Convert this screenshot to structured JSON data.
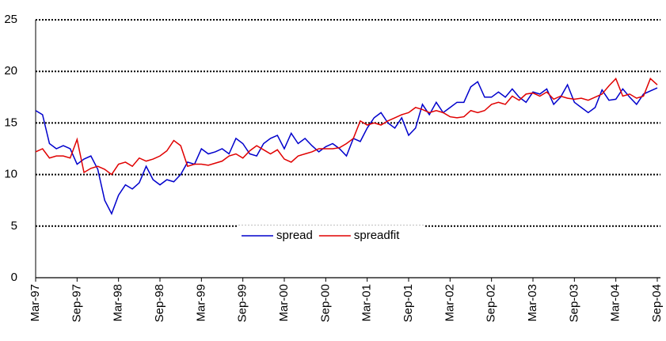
{
  "chart_data": {
    "type": "line",
    "categories": [
      "Mar-97",
      null,
      null,
      null,
      null,
      null,
      "Sep-97",
      null,
      null,
      null,
      null,
      null,
      "Mar-98",
      null,
      null,
      null,
      null,
      null,
      "Sep-98",
      null,
      null,
      null,
      null,
      null,
      "Mar-99",
      null,
      null,
      null,
      null,
      null,
      "Sep-99",
      null,
      null,
      null,
      null,
      null,
      "Mar-00",
      null,
      null,
      null,
      null,
      null,
      "Sep-00",
      null,
      null,
      null,
      null,
      null,
      "Mar-01",
      null,
      null,
      null,
      null,
      null,
      "Sep-01",
      null,
      null,
      null,
      null,
      null,
      "Mar-02",
      null,
      null,
      null,
      null,
      null,
      "Sep-02",
      null,
      null,
      null,
      null,
      null,
      "Mar-03",
      null,
      null,
      null,
      null,
      null,
      "Sep-03",
      null,
      null,
      null,
      null,
      null,
      "Mar-04",
      null,
      null,
      null,
      null,
      null,
      "Sep-04"
    ],
    "series": [
      {
        "name": "spread",
        "color": "#0000cc",
        "values": [
          16.2,
          15.8,
          13,
          12.5,
          12.8,
          12.5,
          11,
          11.5,
          11.8,
          10.5,
          7.5,
          6.2,
          8,
          9,
          8.6,
          9.2,
          10.8,
          9.5,
          9,
          9.5,
          9.3,
          10,
          11.2,
          11,
          12.5,
          12,
          12.2,
          12.5,
          12,
          13.5,
          13,
          12,
          11.8,
          13,
          13.5,
          13.8,
          12.5,
          14,
          13,
          13.5,
          12.8,
          12.2,
          12.7,
          13,
          12.5,
          11.8,
          13.5,
          13.2,
          14.5,
          15.5,
          16,
          15,
          14.5,
          15.5,
          13.8,
          14.5,
          16.8,
          15.8,
          17,
          16,
          16.5,
          17,
          17,
          18.5,
          19,
          17.5,
          17.5,
          18,
          17.5,
          18.3,
          17.5,
          17,
          18,
          17.8,
          18.3,
          16.8,
          17.5,
          18.7,
          17,
          16.5,
          16,
          16.5,
          18.2,
          17.2,
          17.3,
          18.3,
          17.5,
          16.8,
          17.8,
          18.1,
          18.4
        ]
      },
      {
        "name": "spreadfit",
        "color": "#e00000",
        "values": [
          12.2,
          12.5,
          11.6,
          11.8,
          11.8,
          11.6,
          13.4,
          10.2,
          10.6,
          10.8,
          10.5,
          10,
          11,
          11.2,
          10.8,
          11.6,
          11.3,
          11.5,
          11.8,
          12.3,
          13.3,
          12.8,
          10.8,
          11,
          11,
          10.9,
          11.1,
          11.3,
          11.8,
          12,
          11.6,
          12.3,
          12.8,
          12.4,
          12,
          12.4,
          11.5,
          11.2,
          11.8,
          12,
          12.2,
          12.5,
          12.5,
          12.5,
          12.6,
          13,
          13.5,
          15.2,
          14.8,
          15,
          14.8,
          15.2,
          15.5,
          15.8,
          16,
          16.5,
          16.3,
          16,
          16.2,
          16,
          15.6,
          15.5,
          15.6,
          16.2,
          16,
          16.2,
          16.8,
          17,
          16.8,
          17.6,
          17.2,
          17.8,
          17.9,
          17.6,
          18,
          17.3,
          17.6,
          17.4,
          17.3,
          17.4,
          17.2,
          17.5,
          17.8,
          18.6,
          19.3,
          17.6,
          17.8,
          17.4,
          17.6,
          19.3,
          18.7
        ]
      }
    ],
    "ylim": [
      0,
      25
    ],
    "yticks": [
      0,
      5,
      10,
      15,
      20,
      25
    ],
    "grid": true
  }
}
